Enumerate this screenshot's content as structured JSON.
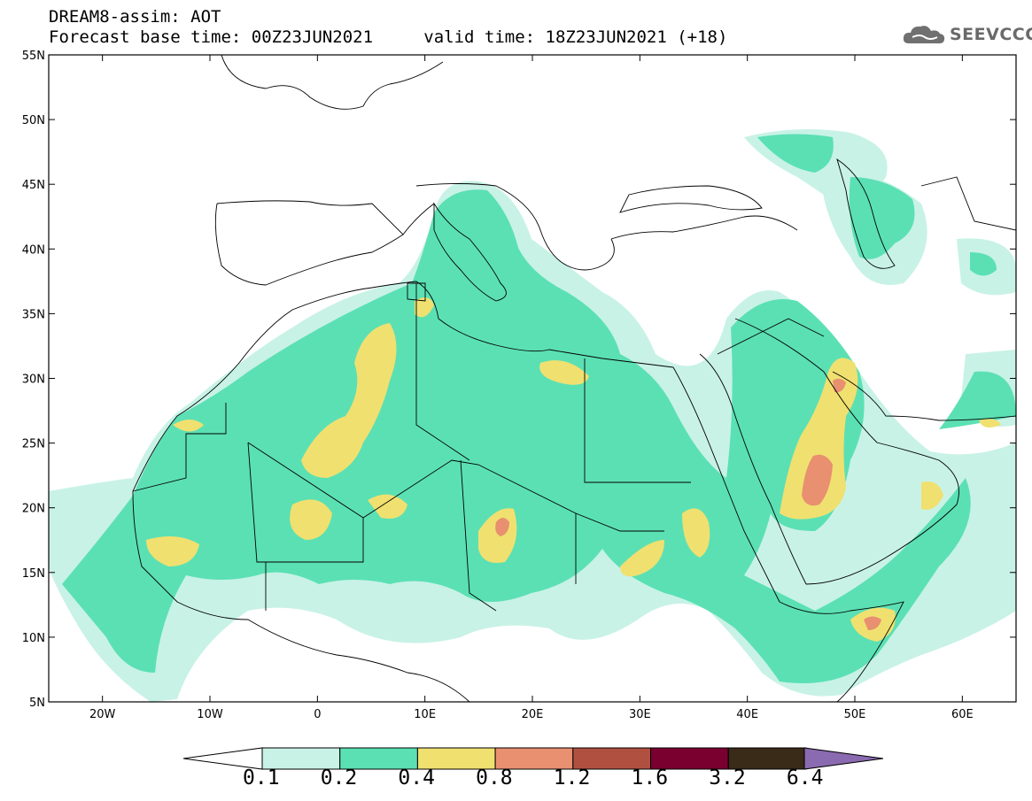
{
  "header": {
    "model_line": "DREAM8-assim: AOT",
    "base_time_label": "Forecast base time: 00Z23JUN2021",
    "valid_time_label": "valid time: 18Z23JUN2021 (+18)",
    "logo_text": "SEEVCCC",
    "logo_icon": "cloud-icon"
  },
  "map": {
    "lon_range": [
      -25,
      65
    ],
    "lat_range": [
      5,
      55
    ],
    "lat_ticks": [
      "55N",
      "50N",
      "45N",
      "40N",
      "35N",
      "30N",
      "25N",
      "20N",
      "15N",
      "10N",
      "5N"
    ],
    "lon_ticks": [
      "20W",
      "10W",
      "0",
      "10E",
      "20E",
      "30E",
      "40E",
      "50E",
      "60E"
    ],
    "ocean_color": "#ffffff",
    "border_color": "#000000"
  },
  "colorbar": {
    "levels": [
      "0.1",
      "0.2",
      "0.4",
      "0.8",
      "1.2",
      "1.6",
      "3.2",
      "6.4"
    ],
    "colors": [
      "#c8f2e6",
      "#5be0b4",
      "#f0e070",
      "#e89070",
      "#b05040",
      "#7a0030",
      "#3a2a18",
      "#8a6ab0"
    ],
    "extend_low_color": "#ffffff"
  }
}
